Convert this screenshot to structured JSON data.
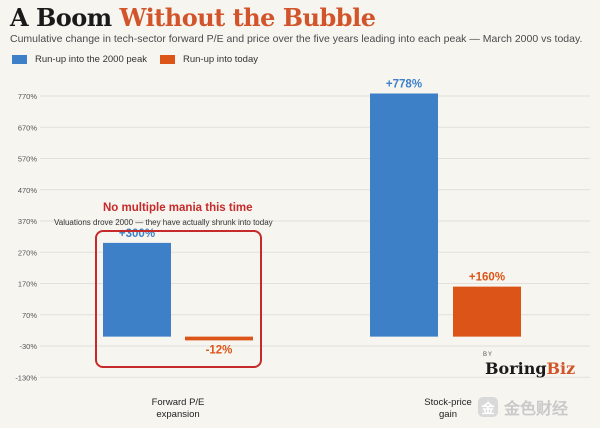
{
  "header": {
    "title_part1": "A Boom",
    "title_part2": "Without the Bubble",
    "subtitle": "Cumulative change in tech-sector forward P/E and price over the five years leading into each peak — March 2000 vs today."
  },
  "annotation": {
    "title": "No multiple mania this time",
    "subtitle": "Valuations drove 2000 — they have actually shrunk into today"
  },
  "branding": {
    "by": "BY",
    "name_part1": "Boring",
    "name_part2": "Biz",
    "watermark_mark": "金",
    "watermark_text": "金色财经"
  },
  "colors": {
    "series_2000": "#3d80c8",
    "series_today": "#dc5417",
    "annotation": "#c62a2a",
    "gridline": "#e2e0da",
    "tick_text": "#555555"
  },
  "chart_data": {
    "type": "bar",
    "categories": [
      "Forward P/E expansion",
      "Stock-price gain"
    ],
    "category_lines": [
      [
        "Forward P/E",
        "expansion"
      ],
      [
        "Stock-price",
        "gain"
      ]
    ],
    "series": [
      {
        "name": "Run-up into the 2000 peak",
        "values": [
          300,
          778
        ],
        "labels": [
          "+300%",
          "+778%"
        ]
      },
      {
        "name": "Run-up into today",
        "values": [
          -12,
          160
        ],
        "labels": [
          "-12%",
          "+160%"
        ]
      }
    ],
    "yticks": [
      -130,
      -30,
      70,
      170,
      270,
      370,
      470,
      570,
      670,
      770
    ],
    "ytick_labels": [
      "-130%",
      "-30%",
      "70%",
      "170%",
      "270%",
      "370%",
      "470%",
      "570%",
      "670%",
      "770%"
    ],
    "ylim": [
      -130,
      870
    ],
    "grid": true,
    "legend": "top-left"
  }
}
